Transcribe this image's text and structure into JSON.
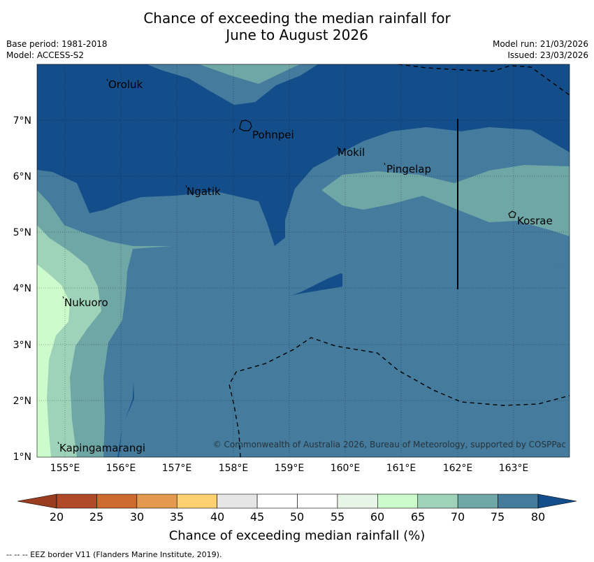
{
  "title": {
    "line1": "Chance of exceeding the median rainfall for",
    "line2": "June to August 2026"
  },
  "meta": {
    "base_period": "Base period: 1981-2018",
    "model": "Model: ACCESS-S2",
    "model_run": "Model run: 21/03/2026",
    "issued": "Issued: 23/03/2026"
  },
  "map": {
    "lon_labels": [
      "155°E",
      "156°E",
      "157°E",
      "158°E",
      "159°E",
      "160°E",
      "161°E",
      "162°E",
      "163°E"
    ],
    "lat_labels": [
      "7°N",
      "6°N",
      "5°N",
      "4°N",
      "3°N",
      "2°N",
      "1°N"
    ],
    "places": [
      "Oroluk",
      "Pohnpei",
      "Mokil",
      "Pingelap",
      "Ngatik",
      "Kosrae",
      "Nukuoro",
      "Kapingamarangi"
    ],
    "copyright": "© Commonwealth of Australia 2026, Bureau of Meteorology, supported by COSPPac"
  },
  "colorbar": {
    "ticks": [
      "20",
      "25",
      "30",
      "35",
      "40",
      "45",
      "50",
      "55",
      "60",
      "65",
      "70",
      "75",
      "80"
    ],
    "colors": [
      "#b04a28",
      "#cc6a30",
      "#e39a4e",
      "#fdd170",
      "#e6e6e6",
      "#ffffff",
      "#ffffff",
      "#e6f5e6",
      "#ccfccc",
      "#9ed3b9",
      "#6fa6a6",
      "#457c9d"
    ],
    "over_color": "#134e8a",
    "under_color": "#9a3c20",
    "label": "Chance of exceeding median rainfall (%)"
  },
  "footer": "--  --  -- EEZ border V11 (Flanders Marine Institute, 2019).",
  "colors": {
    "c80": "#134e8a",
    "c75": "#457c9d",
    "c70": "#6fa6a6",
    "c65": "#9ed3b9",
    "c60": "#ccfccc"
  }
}
